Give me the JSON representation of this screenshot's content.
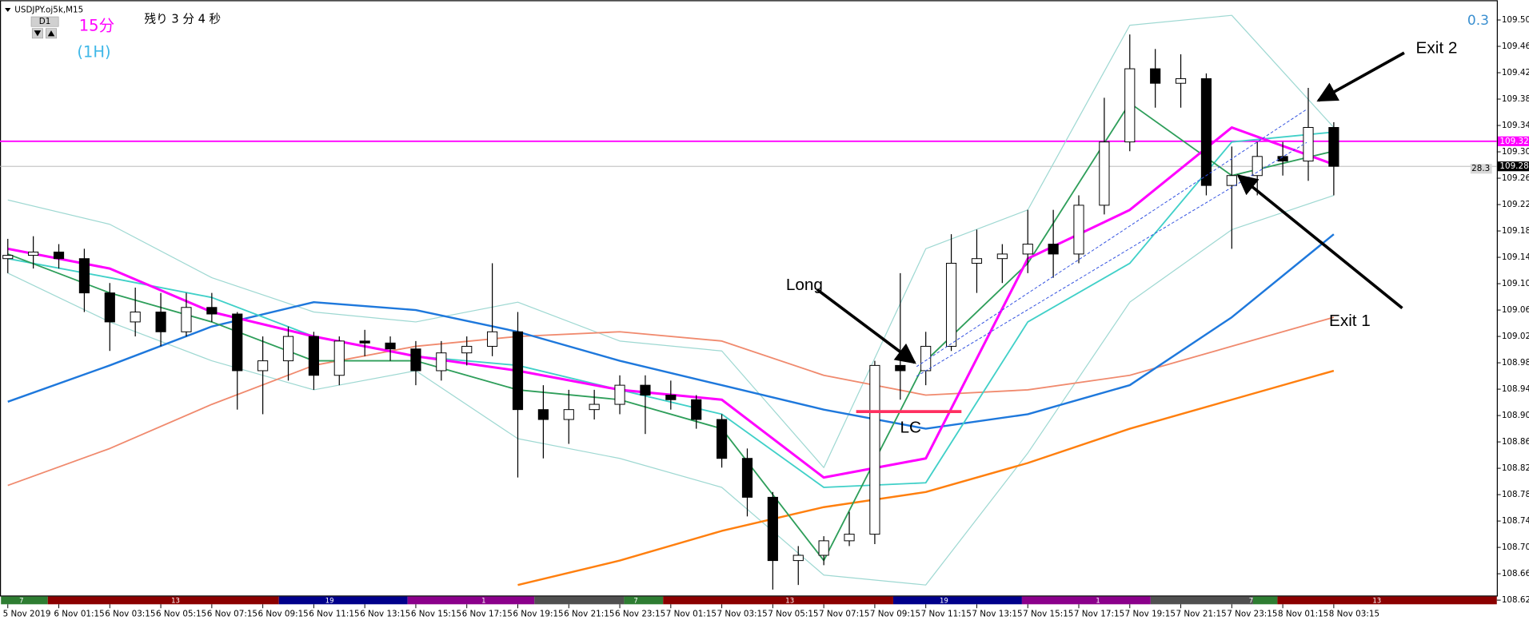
{
  "chart_data": {
    "type": "candlestick",
    "symbol_label": "USDJPY.oj5k,M15",
    "timeframe_button": "D1",
    "indicator_labels": [
      "15分",
      "(1H)"
    ],
    "countdown": "残り 3 分 4 秒",
    "spread_top": "0.3",
    "spread_label": "28.3",
    "annotations": [
      {
        "text": "Long"
      },
      {
        "text": "Exit 1"
      },
      {
        "text": "Exit 2"
      },
      {
        "text": "LC",
        "value": 108.911
      }
    ],
    "ylim": [
      108.632,
      109.532
    ],
    "yticks": [
      109.505,
      109.465,
      109.425,
      109.385,
      109.345,
      109.305,
      109.265,
      109.225,
      109.185,
      109.145,
      109.105,
      109.065,
      109.025,
      108.985,
      108.945,
      108.905,
      108.865,
      108.825,
      108.785,
      108.745,
      108.705,
      108.665,
      108.625
    ],
    "xticks": [
      {
        "value": 0,
        "label": "5 Nov 2019"
      },
      {
        "value": 2,
        "label": "6 Nov 01:15"
      },
      {
        "value": 4,
        "label": "6 Nov 03:15"
      },
      {
        "value": 6,
        "label": "6 Nov 05:15"
      },
      {
        "value": 8,
        "label": "6 Nov 07:15"
      },
      {
        "value": 10,
        "label": "6 Nov 09:15"
      },
      {
        "value": 12,
        "label": "6 Nov 11:15"
      },
      {
        "value": 14,
        "label": "6 Nov 13:15"
      },
      {
        "value": 16,
        "label": "6 Nov 15:15"
      },
      {
        "value": 18,
        "label": "6 Nov 17:15"
      },
      {
        "value": 20,
        "label": "6 Nov 19:15"
      },
      {
        "value": 22,
        "label": "6 Nov 21:15"
      },
      {
        "value": 24,
        "label": "6 Nov 23:15"
      },
      {
        "value": 26,
        "label": "7 Nov 01:15"
      },
      {
        "value": 28,
        "label": "7 Nov 03:15"
      },
      {
        "value": 30,
        "label": "7 Nov 05:15"
      },
      {
        "value": 32,
        "label": "7 Nov 07:15"
      },
      {
        "value": 34,
        "label": "7 Nov 09:15"
      },
      {
        "value": 36,
        "label": "7 Nov 11:15"
      },
      {
        "value": 38,
        "label": "7 Nov 13:15"
      },
      {
        "value": 40,
        "label": "7 Nov 15:15"
      },
      {
        "value": 42,
        "label": "7 Nov 17:15"
      },
      {
        "value": 44,
        "label": "7 Nov 19:15"
      },
      {
        "value": 46,
        "label": "7 Nov 21:15"
      },
      {
        "value": 48,
        "label": "7 Nov 23:15"
      },
      {
        "value": 50,
        "label": "8 Nov 01:15"
      },
      {
        "value": 52,
        "label": "8 Nov 03:15"
      }
    ],
    "sessions": [
      "7",
      "13",
      "19",
      "1",
      "7",
      "13",
      "19",
      "1",
      "7",
      "13"
    ],
    "hlines": [
      {
        "value": 109.321,
        "color": "#ff00ff"
      },
      {
        "value": 109.283,
        "color": "#b0b0b0"
      }
    ],
    "candles": {
      "open": [
        109.143,
        109.148,
        109.153,
        109.143,
        109.091,
        109.047,
        109.062,
        109.032,
        109.069,
        109.059,
        108.973,
        108.988,
        109.025,
        108.966,
        109.018,
        109.015,
        109.006,
        108.973,
        109.0,
        109.01,
        109.032,
        108.914,
        108.899,
        108.914,
        108.922,
        108.951,
        108.936,
        108.929,
        108.899,
        108.84,
        108.781,
        108.685,
        108.693,
        108.715,
        108.725,
        108.981,
        108.973,
        109.01,
        109.136,
        109.143,
        109.15,
        109.165,
        109.15,
        109.224,
        109.32,
        109.431,
        109.409,
        109.416,
        109.254,
        109.269,
        109.298,
        109.291,
        109.342
      ],
      "high": [
        109.173,
        109.177,
        109.165,
        109.158,
        109.106,
        109.099,
        109.091,
        109.091,
        109.091,
        109.062,
        109.025,
        109.04,
        109.032,
        109.025,
        109.035,
        109.025,
        109.018,
        109.018,
        109.025,
        109.136,
        109.062,
        108.951,
        108.944,
        108.944,
        108.966,
        108.966,
        108.958,
        108.936,
        108.907,
        108.855,
        108.789,
        108.707,
        108.722,
        108.759,
        108.988,
        109.121,
        109.032,
        109.18,
        109.187,
        109.165,
        109.217,
        109.217,
        109.239,
        109.387,
        109.483,
        109.461,
        109.453,
        109.424,
        109.313,
        109.32,
        109.32,
        109.402,
        109.35
      ],
      "low": [
        109.121,
        109.128,
        109.128,
        109.062,
        109.003,
        109.025,
        109.01,
        109.025,
        109.047,
        108.914,
        108.907,
        108.958,
        108.944,
        108.951,
        108.995,
        108.988,
        108.951,
        108.958,
        108.981,
        108.995,
        108.811,
        108.84,
        108.862,
        108.899,
        108.907,
        108.877,
        108.914,
        108.885,
        108.826,
        108.752,
        108.641,
        108.648,
        108.678,
        108.707,
        108.71,
        108.929,
        108.951,
        109.003,
        109.091,
        109.106,
        109.121,
        109.114,
        109.136,
        109.21,
        109.306,
        109.372,
        109.372,
        109.239,
        109.158,
        109.239,
        109.269,
        109.261,
        109.239
      ],
      "close": [
        109.148,
        109.153,
        109.143,
        109.091,
        109.047,
        109.062,
        109.032,
        109.069,
        109.059,
        108.973,
        108.988,
        109.025,
        108.966,
        109.018,
        109.015,
        109.006,
        108.973,
        109.0,
        109.01,
        109.032,
        108.914,
        108.899,
        108.914,
        108.922,
        108.951,
        108.936,
        108.929,
        108.899,
        108.84,
        108.781,
        108.685,
        108.693,
        108.715,
        108.725,
        108.981,
        108.973,
        109.01,
        109.136,
        109.143,
        109.15,
        109.165,
        109.15,
        109.224,
        109.32,
        109.431,
        109.409,
        109.416,
        109.254,
        109.269,
        109.298,
        109.291,
        109.342,
        109.283
      ]
    },
    "line_x": [
      0,
      4,
      8,
      12,
      16,
      20,
      24,
      28,
      32,
      36,
      40,
      44,
      48,
      52
    ],
    "lines": [
      {
        "color": "#9ed8d2",
        "width": 1,
        "values": [
          109.232,
          109.195,
          109.114,
          109.062,
          109.047,
          109.077,
          109.018,
          109.003,
          108.826,
          109.158,
          109.217,
          109.497,
          109.512,
          109.342
        ]
      },
      {
        "color": "#9ed8d2",
        "width": 1,
        "values": [
          109.121,
          109.047,
          108.988,
          108.944,
          108.973,
          108.87,
          108.84,
          108.796,
          108.663,
          108.648,
          108.848,
          109.077,
          109.187,
          109.239
        ]
      },
      {
        "color": "#f08a6e",
        "width": 1.5,
        "values": [
          108.799,
          108.855,
          108.922,
          108.981,
          109.01,
          109.025,
          109.032,
          109.018,
          108.966,
          108.936,
          108.944,
          108.966,
          109.01,
          109.054
        ]
      },
      {
        "color": "#ff7f0e",
        "width": 2,
        "values": [
          null,
          null,
          null,
          null,
          null,
          108.648,
          108.685,
          108.73,
          108.766,
          108.789,
          108.833,
          108.885,
          108.929,
          108.973
        ]
      },
      {
        "color": "#1e78dc",
        "width": 2,
        "values": [
          108.926,
          108.981,
          109.04,
          109.077,
          109.065,
          109.032,
          108.988,
          108.951,
          108.914,
          108.885,
          108.907,
          108.951,
          109.054,
          109.18
        ]
      },
      {
        "color": "#40d0c8",
        "width": 1.5,
        "values": [
          109.143,
          109.114,
          109.084,
          109.025,
          108.995,
          108.981,
          108.944,
          108.907,
          108.796,
          108.803,
          109.047,
          109.136,
          109.32,
          109.335
        ]
      },
      {
        "color": "#2e9e5a",
        "width": 1.5,
        "values": [
          109.15,
          109.091,
          109.047,
          108.988,
          108.988,
          108.944,
          108.929,
          108.885,
          108.685,
          108.988,
          109.136,
          109.379,
          109.269,
          109.306
        ]
      },
      {
        "color": "#ff00ff",
        "width": 2.5,
        "values": [
          109.158,
          109.128,
          109.062,
          109.025,
          108.995,
          108.973,
          108.944,
          108.929,
          108.811,
          108.84,
          109.143,
          109.217,
          109.342,
          109.286
        ]
      }
    ]
  }
}
